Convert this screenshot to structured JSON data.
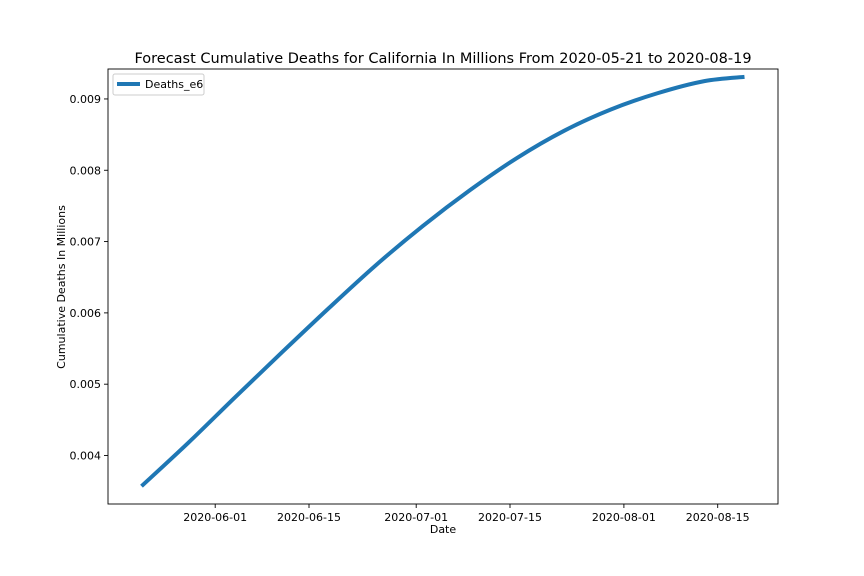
{
  "chart_data": {
    "type": "line",
    "title": "Forecast Cumulative Deaths for California In Millions From 2020-05-21 to 2020-08-19",
    "xlabel": "Date",
    "ylabel": "Cumulative Deaths In Millions",
    "x_ticks": [
      "2020-06-01",
      "2020-06-15",
      "2020-07-01",
      "2020-07-15",
      "2020-08-01",
      "2020-08-15"
    ],
    "y_ticks": [
      "0.004",
      "0.005",
      "0.006",
      "0.007",
      "0.008",
      "0.009"
    ],
    "xlim": [
      "2020-05-16",
      "2020-08-24"
    ],
    "ylim": [
      0.00332,
      0.00942
    ],
    "grid": false,
    "legend_position": "top-left",
    "series": [
      {
        "name": "Deaths_e6",
        "color": "#1f77b4",
        "x": [
          "2020-05-21",
          "2020-05-28",
          "2020-06-04",
          "2020-06-11",
          "2020-06-18",
          "2020-06-25",
          "2020-07-02",
          "2020-07-09",
          "2020-07-16",
          "2020-07-23",
          "2020-07-30",
          "2020-08-06",
          "2020-08-13",
          "2020-08-19"
        ],
        "y": [
          0.00357,
          0.00418,
          0.00482,
          0.00545,
          0.00607,
          0.00667,
          0.00722,
          0.00772,
          0.00817,
          0.00855,
          0.00885,
          0.00908,
          0.00925,
          0.00931
        ]
      }
    ]
  }
}
